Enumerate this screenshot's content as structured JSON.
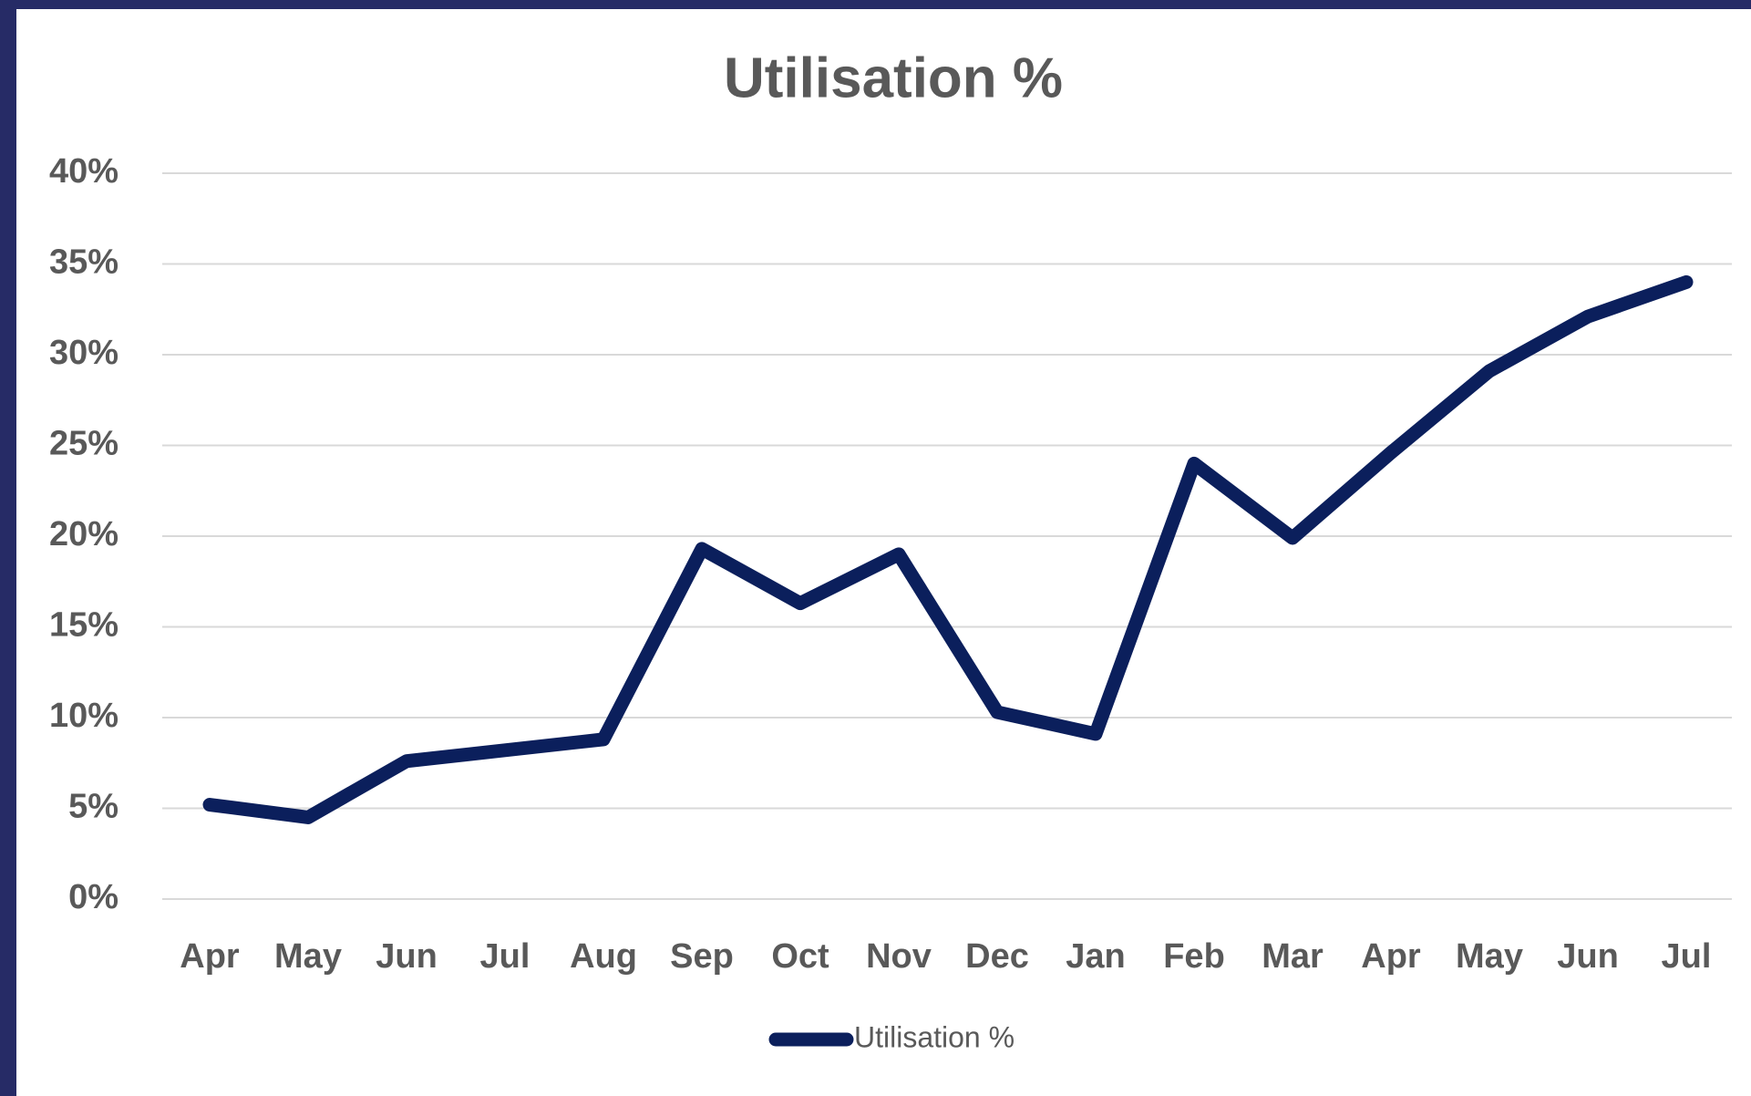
{
  "chart_data": {
    "type": "line",
    "title": "Utilisation %",
    "categories": [
      "Apr",
      "May",
      "Jun",
      "Jul",
      "Aug",
      "Sep",
      "Oct",
      "Nov",
      "Dec",
      "Jan",
      "Feb",
      "Mar",
      "Apr",
      "May",
      "Jun",
      "Jul"
    ],
    "series": [
      {
        "name": "Utilisation %",
        "color": "#0b1f5c",
        "values": [
          5.2,
          4.5,
          7.6,
          8.2,
          8.8,
          19.3,
          16.3,
          19.0,
          10.3,
          9.1,
          24.0,
          19.9,
          24.6,
          29.1,
          32.1,
          34.0
        ]
      }
    ],
    "ylim": [
      0,
      40
    ],
    "yticks": [
      {
        "value": 0,
        "label": "0%"
      },
      {
        "value": 5,
        "label": "5%"
      },
      {
        "value": 10,
        "label": "10%"
      },
      {
        "value": 15,
        "label": "15%"
      },
      {
        "value": 20,
        "label": "20%"
      },
      {
        "value": 25,
        "label": "25%"
      },
      {
        "value": 30,
        "label": "30%"
      },
      {
        "value": 35,
        "label": "35%"
      },
      {
        "value": 40,
        "label": "40%"
      }
    ],
    "grid": true,
    "legend": "bottom"
  }
}
